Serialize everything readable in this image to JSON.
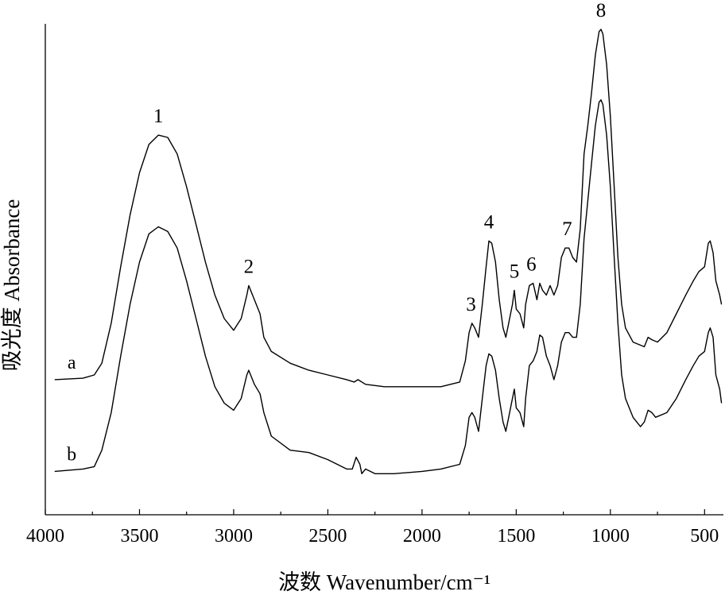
{
  "chart_data": {
    "type": "line",
    "title": "",
    "xlabel": "波数 Wavenumber/cm⁻¹",
    "ylabel": "吸光度 Absorbance",
    "xlim": [
      4000,
      400
    ],
    "x_reversed": true,
    "ylim": [
      0,
      1
    ],
    "y_ticks_shown": false,
    "x_ticks": [
      4000,
      3500,
      3000,
      2500,
      2000,
      1500,
      1000,
      500
    ],
    "x_tick_labels": [
      "4000",
      "3500",
      "3000",
      "2500",
      "2000",
      "1500",
      "1000",
      "500"
    ],
    "grid": false,
    "legend": "none",
    "series": [
      {
        "name": "a",
        "points": [
          [
            3950,
            0.24
          ],
          [
            3800,
            0.243
          ],
          [
            3740,
            0.25
          ],
          [
            3700,
            0.275
          ],
          [
            3650,
            0.36
          ],
          [
            3600,
            0.48
          ],
          [
            3550,
            0.59
          ],
          [
            3500,
            0.68
          ],
          [
            3450,
            0.74
          ],
          [
            3400,
            0.76
          ],
          [
            3350,
            0.755
          ],
          [
            3300,
            0.72
          ],
          [
            3250,
            0.65
          ],
          [
            3200,
            0.57
          ],
          [
            3150,
            0.49
          ],
          [
            3100,
            0.42
          ],
          [
            3050,
            0.37
          ],
          [
            3000,
            0.345
          ],
          [
            2960,
            0.37
          ],
          [
            2930,
            0.42
          ],
          [
            2920,
            0.44
          ],
          [
            2890,
            0.41
          ],
          [
            2860,
            0.38
          ],
          [
            2840,
            0.33
          ],
          [
            2800,
            0.3
          ],
          [
            2700,
            0.275
          ],
          [
            2600,
            0.26
          ],
          [
            2500,
            0.25
          ],
          [
            2400,
            0.24
          ],
          [
            2360,
            0.235
          ],
          [
            2340,
            0.24
          ],
          [
            2300,
            0.23
          ],
          [
            2200,
            0.225
          ],
          [
            2000,
            0.225
          ],
          [
            1900,
            0.225
          ],
          [
            1800,
            0.235
          ],
          [
            1770,
            0.28
          ],
          [
            1750,
            0.34
          ],
          [
            1735,
            0.36
          ],
          [
            1720,
            0.35
          ],
          [
            1700,
            0.33
          ],
          [
            1680,
            0.4
          ],
          [
            1660,
            0.48
          ],
          [
            1645,
            0.535
          ],
          [
            1630,
            0.53
          ],
          [
            1610,
            0.49
          ],
          [
            1590,
            0.41
          ],
          [
            1570,
            0.35
          ],
          [
            1555,
            0.33
          ],
          [
            1540,
            0.36
          ],
          [
            1520,
            0.4
          ],
          [
            1510,
            0.43
          ],
          [
            1500,
            0.39
          ],
          [
            1480,
            0.38
          ],
          [
            1460,
            0.35
          ],
          [
            1450,
            0.4
          ],
          [
            1430,
            0.44
          ],
          [
            1410,
            0.445
          ],
          [
            1390,
            0.41
          ],
          [
            1375,
            0.445
          ],
          [
            1360,
            0.43
          ],
          [
            1340,
            0.42
          ],
          [
            1320,
            0.44
          ],
          [
            1300,
            0.42
          ],
          [
            1280,
            0.44
          ],
          [
            1260,
            0.5
          ],
          [
            1240,
            0.52
          ],
          [
            1220,
            0.52
          ],
          [
            1200,
            0.5
          ],
          [
            1180,
            0.49
          ],
          [
            1160,
            0.56
          ],
          [
            1140,
            0.72
          ],
          [
            1120,
            0.78
          ],
          [
            1100,
            0.85
          ],
          [
            1080,
            0.93
          ],
          [
            1060,
            0.98
          ],
          [
            1050,
            0.985
          ],
          [
            1040,
            0.975
          ],
          [
            1020,
            0.91
          ],
          [
            1000,
            0.8
          ],
          [
            980,
            0.65
          ],
          [
            960,
            0.5
          ],
          [
            940,
            0.4
          ],
          [
            920,
            0.35
          ],
          [
            880,
            0.32
          ],
          [
            820,
            0.31
          ],
          [
            800,
            0.33
          ],
          [
            780,
            0.325
          ],
          [
            750,
            0.32
          ],
          [
            700,
            0.34
          ],
          [
            650,
            0.38
          ],
          [
            600,
            0.42
          ],
          [
            560,
            0.45
          ],
          [
            530,
            0.47
          ],
          [
            500,
            0.48
          ],
          [
            480,
            0.53
          ],
          [
            470,
            0.535
          ],
          [
            455,
            0.51
          ],
          [
            440,
            0.45
          ],
          [
            420,
            0.42
          ],
          [
            410,
            0.4
          ]
        ]
      },
      {
        "name": "b",
        "points": [
          [
            3950,
            0.045
          ],
          [
            3800,
            0.05
          ],
          [
            3740,
            0.055
          ],
          [
            3700,
            0.09
          ],
          [
            3650,
            0.17
          ],
          [
            3600,
            0.29
          ],
          [
            3550,
            0.4
          ],
          [
            3500,
            0.49
          ],
          [
            3450,
            0.55
          ],
          [
            3400,
            0.565
          ],
          [
            3350,
            0.555
          ],
          [
            3300,
            0.52
          ],
          [
            3250,
            0.45
          ],
          [
            3200,
            0.37
          ],
          [
            3150,
            0.29
          ],
          [
            3100,
            0.225
          ],
          [
            3050,
            0.19
          ],
          [
            3000,
            0.175
          ],
          [
            2960,
            0.2
          ],
          [
            2930,
            0.25
          ],
          [
            2920,
            0.26
          ],
          [
            2890,
            0.23
          ],
          [
            2860,
            0.21
          ],
          [
            2840,
            0.17
          ],
          [
            2800,
            0.12
          ],
          [
            2700,
            0.09
          ],
          [
            2600,
            0.085
          ],
          [
            2500,
            0.07
          ],
          [
            2400,
            0.05
          ],
          [
            2370,
            0.05
          ],
          [
            2350,
            0.075
          ],
          [
            2330,
            0.06
          ],
          [
            2320,
            0.04
          ],
          [
            2300,
            0.05
          ],
          [
            2250,
            0.04
          ],
          [
            2150,
            0.04
          ],
          [
            2000,
            0.045
          ],
          [
            1900,
            0.05
          ],
          [
            1800,
            0.06
          ],
          [
            1770,
            0.1
          ],
          [
            1750,
            0.16
          ],
          [
            1735,
            0.17
          ],
          [
            1720,
            0.16
          ],
          [
            1700,
            0.13
          ],
          [
            1680,
            0.2
          ],
          [
            1660,
            0.27
          ],
          [
            1645,
            0.295
          ],
          [
            1630,
            0.29
          ],
          [
            1610,
            0.26
          ],
          [
            1590,
            0.2
          ],
          [
            1570,
            0.15
          ],
          [
            1555,
            0.13
          ],
          [
            1540,
            0.16
          ],
          [
            1520,
            0.2
          ],
          [
            1510,
            0.22
          ],
          [
            1500,
            0.18
          ],
          [
            1480,
            0.17
          ],
          [
            1460,
            0.14
          ],
          [
            1450,
            0.2
          ],
          [
            1430,
            0.27
          ],
          [
            1410,
            0.28
          ],
          [
            1390,
            0.3
          ],
          [
            1375,
            0.335
          ],
          [
            1360,
            0.33
          ],
          [
            1340,
            0.29
          ],
          [
            1320,
            0.27
          ],
          [
            1300,
            0.24
          ],
          [
            1280,
            0.27
          ],
          [
            1260,
            0.32
          ],
          [
            1240,
            0.34
          ],
          [
            1220,
            0.34
          ],
          [
            1200,
            0.33
          ],
          [
            1180,
            0.33
          ],
          [
            1160,
            0.4
          ],
          [
            1140,
            0.54
          ],
          [
            1120,
            0.62
          ],
          [
            1100,
            0.7
          ],
          [
            1080,
            0.78
          ],
          [
            1060,
            0.83
          ],
          [
            1050,
            0.835
          ],
          [
            1040,
            0.825
          ],
          [
            1020,
            0.76
          ],
          [
            1000,
            0.65
          ],
          [
            980,
            0.5
          ],
          [
            960,
            0.36
          ],
          [
            940,
            0.25
          ],
          [
            920,
            0.2
          ],
          [
            880,
            0.16
          ],
          [
            840,
            0.14
          ],
          [
            820,
            0.15
          ],
          [
            800,
            0.175
          ],
          [
            780,
            0.17
          ],
          [
            760,
            0.16
          ],
          [
            700,
            0.17
          ],
          [
            650,
            0.2
          ],
          [
            600,
            0.24
          ],
          [
            560,
            0.27
          ],
          [
            530,
            0.29
          ],
          [
            500,
            0.3
          ],
          [
            480,
            0.34
          ],
          [
            470,
            0.35
          ],
          [
            455,
            0.33
          ],
          [
            440,
            0.25
          ],
          [
            420,
            0.22
          ],
          [
            410,
            0.19
          ]
        ]
      }
    ],
    "peak_annotations": [
      {
        "label": "1",
        "x": 3400,
        "y": 0.76,
        "series": "a"
      },
      {
        "label": "2",
        "x": 2920,
        "y": 0.44,
        "series": "a"
      },
      {
        "label": "3",
        "x": 1740,
        "y": 0.36,
        "series": "a"
      },
      {
        "label": "4",
        "x": 1645,
        "y": 0.535,
        "series": "a"
      },
      {
        "label": "5",
        "x": 1510,
        "y": 0.43,
        "series": "a"
      },
      {
        "label": "6",
        "x": 1420,
        "y": 0.445,
        "series": "a"
      },
      {
        "label": "7",
        "x": 1230,
        "y": 0.52,
        "series": "a"
      },
      {
        "label": "8",
        "x": 1050,
        "y": 0.985,
        "series": "a"
      }
    ]
  }
}
